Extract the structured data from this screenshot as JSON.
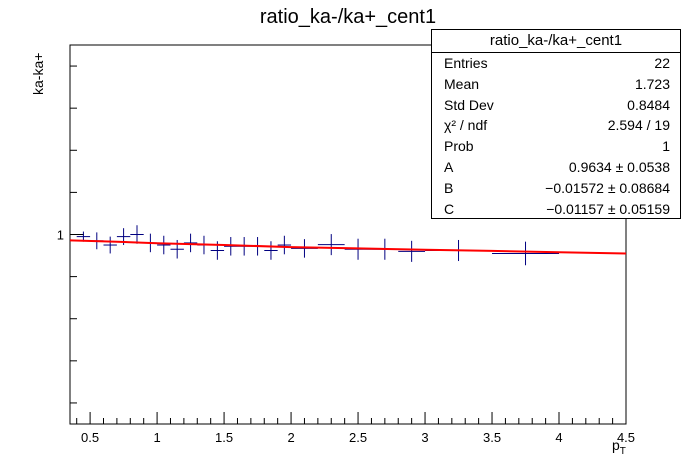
{
  "title": "ratio_ka-/ka+_cent1",
  "ylabel": "ka-ka+",
  "xlabel": "p",
  "xlabel_sub": "T",
  "stats": {
    "header": "ratio_ka-/ka+_cent1",
    "rows": [
      {
        "label": "Entries",
        "value": "22"
      },
      {
        "label": "Mean",
        "value": "1.723"
      },
      {
        "label": "Std Dev",
        "value": "0.8484"
      },
      {
        "label": "χ² / ndf",
        "value": "2.594 / 19"
      },
      {
        "label": "Prob",
        "value": "1"
      },
      {
        "label": "A",
        "value": "0.9634 ± 0.0538"
      },
      {
        "label": "B",
        "value": "−0.01572 ± 0.08684"
      },
      {
        "label": "C",
        "value": "−0.01157 ± 0.05159"
      }
    ]
  },
  "colors": {
    "points": "#000080",
    "fit": "#ff0000",
    "axis": "#000000"
  },
  "chart_data": {
    "type": "scatter",
    "title": "ratio_ka-/ka+_cent1",
    "xlabel": "pT",
    "ylabel": "ka-ka+",
    "xlim": [
      0.35,
      4.5
    ],
    "ylim": [
      0.55,
      1.45
    ],
    "x_ticks": [
      0.5,
      1,
      1.5,
      2,
      2.5,
      3,
      3.5,
      4,
      4.5
    ],
    "x_tick_labels": [
      "0.5",
      "1",
      "1.5",
      "2",
      "2.5",
      "3",
      "3.5",
      "4",
      "4.5"
    ],
    "y_ticks": [
      1
    ],
    "y_tick_labels": [
      "1"
    ],
    "series": [
      {
        "points": [
          {
            "x": 0.45,
            "y": 0.995,
            "xerr": 0.05,
            "yerr": 0.012
          },
          {
            "x": 0.55,
            "y": 0.985,
            "xerr": 0.05,
            "yerr": 0.02
          },
          {
            "x": 0.65,
            "y": 0.975,
            "xerr": 0.05,
            "yerr": 0.02
          },
          {
            "x": 0.75,
            "y": 0.995,
            "xerr": 0.05,
            "yerr": 0.02
          },
          {
            "x": 0.85,
            "y": 1.0,
            "xerr": 0.05,
            "yerr": 0.022
          },
          {
            "x": 0.95,
            "y": 0.98,
            "xerr": 0.05,
            "yerr": 0.022
          },
          {
            "x": 1.05,
            "y": 0.975,
            "xerr": 0.05,
            "yerr": 0.022
          },
          {
            "x": 1.15,
            "y": 0.965,
            "xerr": 0.05,
            "yerr": 0.022
          },
          {
            "x": 1.25,
            "y": 0.98,
            "xerr": 0.05,
            "yerr": 0.022
          },
          {
            "x": 1.35,
            "y": 0.975,
            "xerr": 0.05,
            "yerr": 0.022
          },
          {
            "x": 1.45,
            "y": 0.962,
            "xerr": 0.05,
            "yerr": 0.022
          },
          {
            "x": 1.55,
            "y": 0.972,
            "xerr": 0.05,
            "yerr": 0.022
          },
          {
            "x": 1.65,
            "y": 0.972,
            "xerr": 0.05,
            "yerr": 0.022
          },
          {
            "x": 1.75,
            "y": 0.972,
            "xerr": 0.05,
            "yerr": 0.022
          },
          {
            "x": 1.85,
            "y": 0.962,
            "xerr": 0.05,
            "yerr": 0.022
          },
          {
            "x": 1.95,
            "y": 0.975,
            "xerr": 0.05,
            "yerr": 0.022
          },
          {
            "x": 2.1,
            "y": 0.967,
            "xerr": 0.1,
            "yerr": 0.022
          },
          {
            "x": 2.3,
            "y": 0.976,
            "xerr": 0.1,
            "yerr": 0.025
          },
          {
            "x": 2.5,
            "y": 0.965,
            "xerr": 0.1,
            "yerr": 0.025
          },
          {
            "x": 2.7,
            "y": 0.965,
            "xerr": 0.1,
            "yerr": 0.025
          },
          {
            "x": 2.9,
            "y": 0.96,
            "xerr": 0.1,
            "yerr": 0.025
          },
          {
            "x": 3.25,
            "y": 0.962,
            "xerr": 0.25,
            "yerr": 0.025
          },
          {
            "x": 3.75,
            "y": 0.955,
            "xerr": 0.25,
            "yerr": 0.028
          }
        ]
      }
    ],
    "fit": {
      "type": "line",
      "x": [
        0.35,
        0.7,
        1.0,
        1.5,
        2.0,
        2.5,
        3.0,
        3.5,
        4.0,
        4.5
      ],
      "y": [
        0.986,
        0.983,
        0.979,
        0.975,
        0.97,
        0.967,
        0.964,
        0.961,
        0.958,
        0.955
      ]
    },
    "grid": false,
    "legend": "top-right"
  }
}
